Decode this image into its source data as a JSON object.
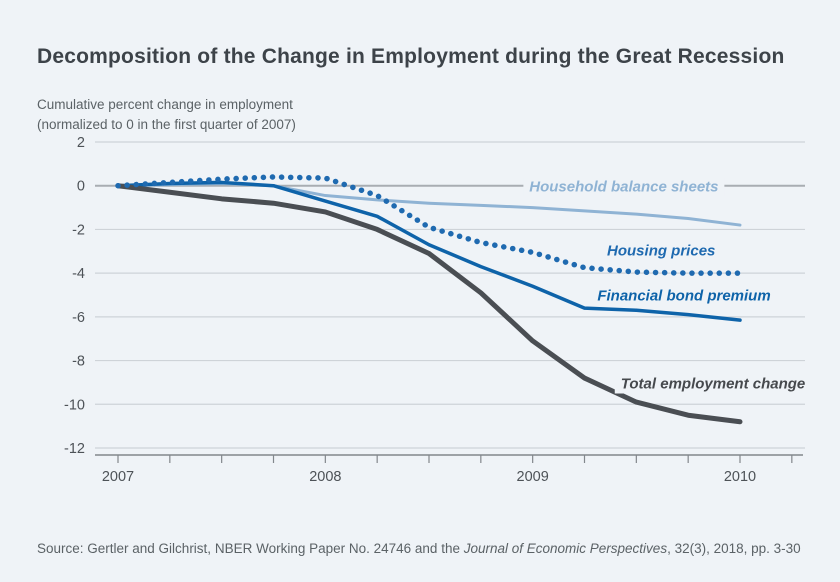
{
  "page": {
    "title": "Decomposition of the Change in Employment during the Great Recession",
    "subtitle": [
      "Cumulative percent change in employment",
      "(normalized to 0 in the first quarter of 2007)"
    ],
    "source": {
      "prefix": "Source: Gertler and Gilchrist, NBER Working Paper No. 24746 and the ",
      "italic": "Journal of Economic Perspectives",
      "suffix": ", 32(3), 2018, pp. 3-30"
    }
  },
  "colors": {
    "background": "#eff3f7",
    "title_text": "#3d4349",
    "muted_text": "#5b6266",
    "grid": "#ced3d8",
    "zero_line": "#a8adb2",
    "axis": "#82878c",
    "tick_label": "#4d5257"
  },
  "chart_data": {
    "type": "line",
    "title": "Decomposition of the Change in Employment during the Great Recession",
    "ylabel": "Cumulative percent change in employment (normalized to 0 in the first quarter of 2007)",
    "xlabel": "",
    "grid": "horizontal",
    "legend_position": "inline-annotations",
    "ylim": [
      -12,
      2
    ],
    "yticks": [
      2,
      0,
      -2,
      -4,
      -6,
      -8,
      -10,
      -12
    ],
    "xticks": {
      "labeled": [
        2007,
        2008,
        2009,
        2010
      ],
      "minor_step": 0.25,
      "range": [
        2007,
        2010.25
      ]
    },
    "x": [
      2007,
      2007.25,
      2007.5,
      2007.75,
      2008,
      2008.25,
      2008.5,
      2008.75,
      2009,
      2009.25,
      2009.5,
      2009.75,
      2010
    ],
    "series": [
      {
        "name": "Household balance sheets",
        "style": "solid",
        "color": "#8fb3d4",
        "width": 3,
        "values": [
          0,
          0.05,
          0.1,
          0,
          -0.45,
          -0.65,
          -0.8,
          -0.9,
          -1.0,
          -1.15,
          -1.3,
          -1.5,
          -1.8
        ]
      },
      {
        "name": "Financial bond premium",
        "style": "solid",
        "color": "#0e63a9",
        "width": 3.5,
        "values": [
          0,
          0.1,
          0.15,
          0,
          -0.7,
          -1.4,
          -2.7,
          -3.7,
          -4.6,
          -5.6,
          -5.7,
          -5.9,
          -6.15
        ]
      },
      {
        "name": "Total employment change",
        "style": "solid",
        "color": "#4a4e53",
        "width": 5,
        "values": [
          0,
          -0.3,
          -0.6,
          -0.8,
          -1.2,
          -2.0,
          -3.1,
          -4.9,
          -7.1,
          -8.8,
          -9.9,
          -10.5,
          -10.8
        ]
      },
      {
        "name": "Housing prices",
        "style": "dotted",
        "color": "#1f6ab0",
        "width": 5.5,
        "values": [
          0,
          0.15,
          0.3,
          0.4,
          0.35,
          -0.45,
          -1.9,
          -2.6,
          -3.05,
          -3.75,
          -3.95,
          -4.0,
          -4.0
        ]
      }
    ],
    "annotations": [
      {
        "text": "Household balance sheets",
        "x": 2009.44,
        "y": -0.05,
        "color": "#8fb3d4"
      },
      {
        "text": "Housing prices",
        "x": 2009.62,
        "y": -3.0,
        "color": "#1f6ab0"
      },
      {
        "text": "Financial bond premium",
        "x": 2009.73,
        "y": -5.05,
        "color": "#0e63a9"
      },
      {
        "text": "Total employment change",
        "x": 2009.87,
        "y": -9.05,
        "color": "#46494d"
      }
    ]
  }
}
